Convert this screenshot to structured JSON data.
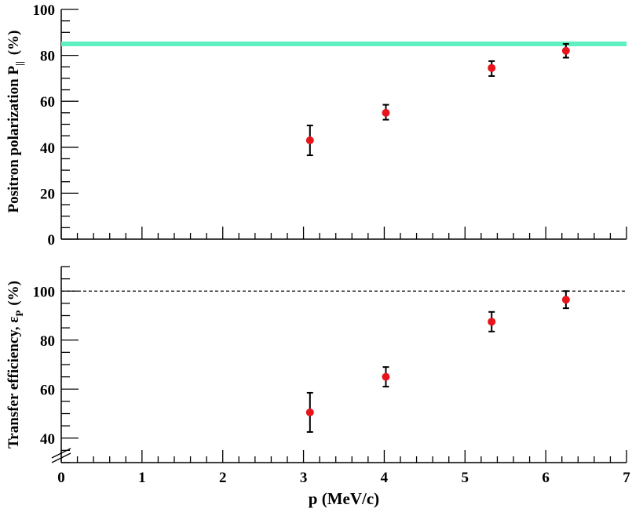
{
  "chart_data": [
    {
      "type": "scatter",
      "ylabel": "Positron polarization P",
      "ylabel_subscript": "||",
      "ylabel_unit": "(%)",
      "ylim": [
        0,
        100
      ],
      "y_ticks": [
        "0",
        "20",
        "40",
        "60",
        "80",
        "100"
      ],
      "reference_band": {
        "y": 85,
        "color": "#5ef0c0"
      },
      "series": [
        {
          "color": "#e8141c",
          "x": [
            3.08,
            4.02,
            5.33,
            6.25
          ],
          "y": [
            43,
            55,
            74.5,
            82
          ],
          "err_low": [
            36.5,
            52,
            71,
            79
          ],
          "err_high": [
            49.5,
            58.5,
            77.5,
            85
          ]
        }
      ]
    },
    {
      "type": "scatter",
      "ylabel": "Transfer efficiency, ε",
      "ylabel_subscript": "P",
      "ylabel_unit": "(%)",
      "ylim": [
        30,
        110
      ],
      "y_ticks": [
        "40",
        "60",
        "80",
        "100"
      ],
      "reference_line": {
        "y": 100,
        "style": "dashed"
      },
      "axis_break": true,
      "series": [
        {
          "color": "#e8141c",
          "x": [
            3.08,
            4.02,
            5.33,
            6.25
          ],
          "y": [
            50.5,
            65,
            87.5,
            96.5
          ],
          "err_low": [
            42.5,
            61,
            83.5,
            93
          ],
          "err_high": [
            58.5,
            69,
            91.5,
            100
          ]
        }
      ]
    }
  ],
  "x_axis": {
    "label": "p  (MeV/c)",
    "xlim": [
      0,
      7
    ],
    "ticks": [
      "0",
      "1",
      "2",
      "3",
      "4",
      "5",
      "6",
      "7"
    ]
  }
}
